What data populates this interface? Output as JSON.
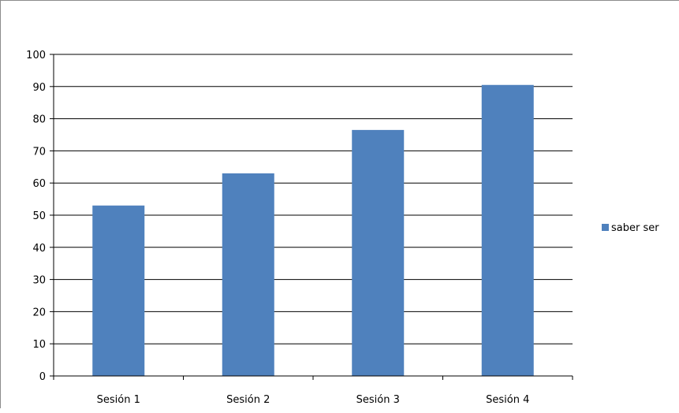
{
  "chart_data": {
    "type": "bar",
    "title": "",
    "xlabel": "",
    "ylabel": "",
    "categories": [
      "Sesión 1",
      "Sesión 2",
      "Sesión 3",
      "Sesión 4"
    ],
    "series": [
      {
        "name": "saber ser",
        "values": [
          53,
          63,
          76.5,
          90.5
        ],
        "color": "#4f81bd"
      }
    ],
    "ylim": [
      0,
      100
    ],
    "yticks": [
      "0",
      "10",
      "20",
      "30",
      "40",
      "50",
      "60",
      "70",
      "80",
      "90",
      "100"
    ],
    "grid": true,
    "legend_position": "right"
  }
}
